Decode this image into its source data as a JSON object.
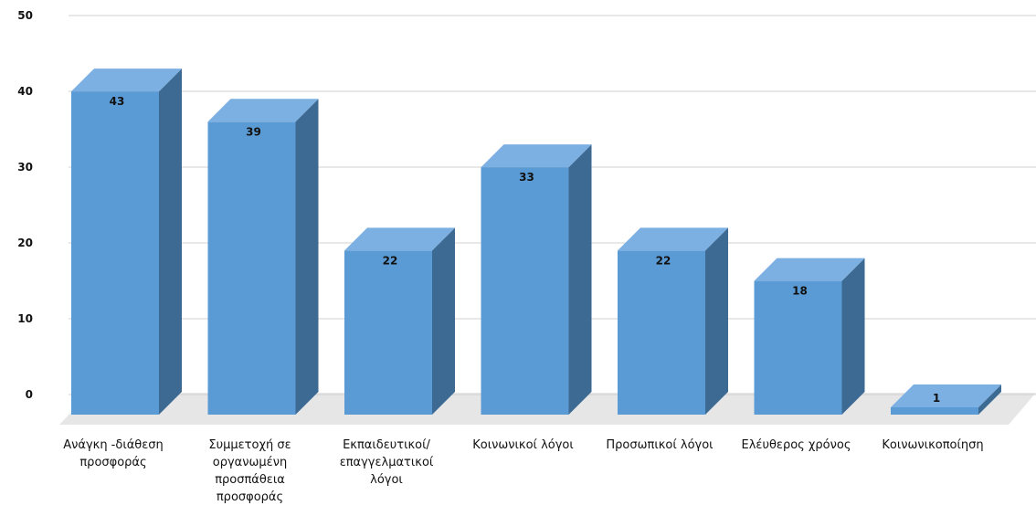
{
  "chart_data": {
    "type": "bar",
    "style": "3d-column",
    "categories": [
      [
        "Ανάγκη -διάθεση",
        "προσφοράς"
      ],
      [
        "Συμμετοχή σε",
        "οργανωμένη",
        "προσπάθεια",
        "προσφοράς"
      ],
      [
        "Εκπαιδευτικοί/",
        "επαγγελματικοί",
        "λόγοι"
      ],
      [
        "Κοινωνικοί λόγοι"
      ],
      [
        "Προσωπικοί λόγοι"
      ],
      [
        "Ελέυθερος χρόνος"
      ],
      [
        "Κοινωνικοποίηση"
      ]
    ],
    "values": [
      43,
      39,
      22,
      33,
      22,
      18,
      1
    ],
    "data_labels": [
      "43",
      "39",
      "22",
      "33",
      "22",
      "18",
      "1"
    ],
    "ylim": [
      0,
      50
    ],
    "yticks": [
      "0",
      "10",
      "20",
      "30",
      "40",
      "50"
    ],
    "grid": true,
    "legend": "none",
    "colors": {
      "front": "#5b9bd5",
      "top": "#7cb0e2",
      "side": "#3d6a93",
      "grid": "#d0d0d0",
      "floor": "#e6e6e6"
    }
  }
}
